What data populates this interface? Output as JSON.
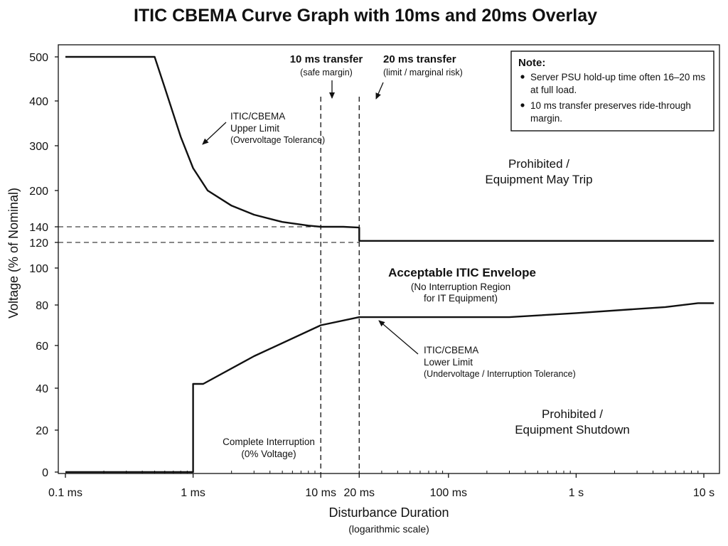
{
  "chart_data": {
    "type": "line",
    "title": "ITIC CBEMA Curve Graph with 10ms and 20ms Overlay",
    "xlabel": "Disturbance Duration",
    "xlabel_sub": "(logarithmic scale)",
    "ylabel": "Voltage (% of Nominal)",
    "x_scale": "log",
    "x_unit": "ms",
    "xlim": [
      0.1,
      12000
    ],
    "ylim": [
      0,
      520
    ],
    "grid": false,
    "x_ticks": [
      {
        "value": 0.1,
        "label": "0.1 ms"
      },
      {
        "value": 1,
        "label": "1 ms"
      },
      {
        "value": 10,
        "label": "10 ms"
      },
      {
        "value": 20,
        "label": "20 ms"
      },
      {
        "value": 100,
        "label": "100 ms"
      },
      {
        "value": 1000,
        "label": "1 s"
      },
      {
        "value": 10000,
        "label": "10 s"
      }
    ],
    "y_ticks": [
      0,
      20,
      40,
      60,
      80,
      100,
      120,
      140,
      200,
      300,
      400,
      500
    ],
    "series": [
      {
        "name": "ITIC/CBEMA Upper Limit",
        "x": [
          0.1,
          0.5,
          0.6,
          0.8,
          1.0,
          1.3,
          2,
          3,
          5,
          8,
          10,
          15,
          20,
          20,
          100,
          500,
          1000,
          5000,
          12000
        ],
        "y": [
          500,
          500,
          430,
          320,
          250,
          200,
          175,
          160,
          148,
          142,
          140,
          140,
          139,
          122,
          122,
          122,
          122,
          122,
          122
        ]
      },
      {
        "name": "ITIC/CBEMA Lower Limit",
        "x": [
          0.1,
          1,
          1,
          1.2,
          3,
          10,
          20,
          100,
          300,
          1000,
          5000,
          9000,
          12000
        ],
        "y": [
          0,
          0,
          42,
          42,
          55,
          70,
          74,
          74,
          74,
          76,
          79,
          81,
          81
        ]
      }
    ],
    "reference_lines": [
      {
        "orientation": "vertical",
        "x": 10,
        "style": "dashed",
        "label": "10 ms transfer",
        "sublabel": "(safe margin)"
      },
      {
        "orientation": "vertical",
        "x": 20,
        "style": "dashed",
        "label": "20 ms transfer",
        "sublabel": "(limit / marginal risk)"
      },
      {
        "orientation": "horizontal",
        "y": 140,
        "style": "dashed"
      },
      {
        "orientation": "horizontal",
        "y": 120,
        "style": "dashed"
      }
    ],
    "annotations": {
      "upper_limit": [
        "ITIC/CBEMA",
        "Upper Limit",
        "(Overvoltage Tolerance)"
      ],
      "lower_limit": [
        "ITIC/CBEMA",
        "Lower Limit",
        "(Undervoltage / Interruption Tolerance)"
      ],
      "prohibited_trip": [
        "Prohibited /",
        "Equipment May Trip"
      ],
      "acceptable": [
        "Acceptable ITIC Envelope",
        "(No Interruption Region",
        "for IT Equipment)"
      ],
      "prohibited_shutdown": [
        "Prohibited /",
        "Equipment Shutdown"
      ],
      "interruption": [
        "Complete Interruption",
        "(0% Voltage)"
      ]
    },
    "note": {
      "title": "Note:",
      "bullets": [
        [
          "Server PSU hold-up time often 16–20 ms",
          "at full load."
        ],
        [
          "10 ms transfer preserves ride-through",
          "margin."
        ]
      ]
    }
  }
}
